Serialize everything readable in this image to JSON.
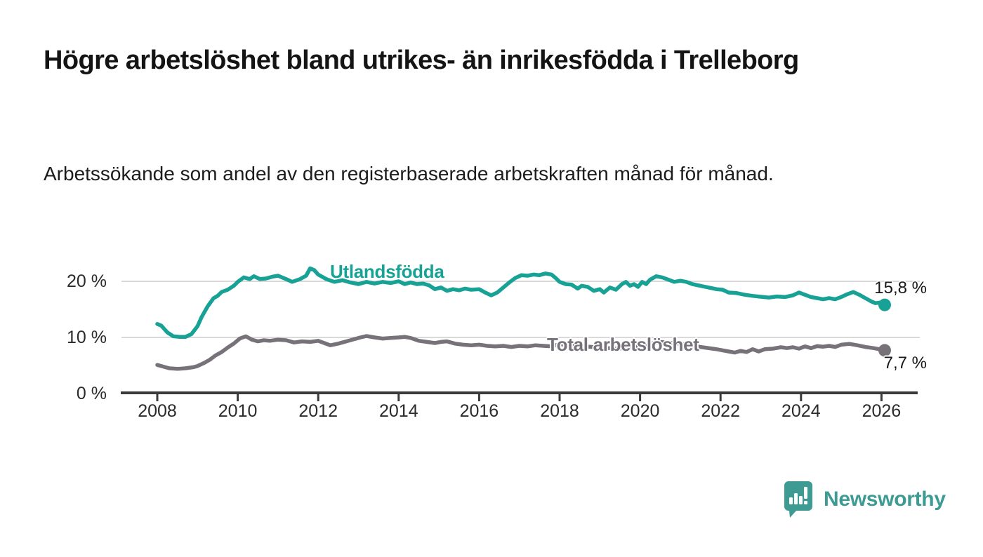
{
  "header": {
    "title": "Högre arbetslöshet bland utrikes- än inrikesfödda i Trelleborg",
    "subtitle": "Arbetssökande som andel av den registerbaserade arbetskraften månad för månad."
  },
  "footer": {
    "brand": "Newsworthy"
  },
  "colors": {
    "series_foreign": "#17a295",
    "series_total": "#77717a",
    "grid": "#d9d9d9",
    "axis": "#3a3a3a",
    "logo": "#3e9b94"
  },
  "chart_data": {
    "type": "line",
    "title": "Högre arbetslöshet bland utrikes- än inrikesfödda i Trelleborg",
    "subtitle": "Arbetssökande som andel av den registerbaserade arbetskraften månad för månad.",
    "unit": "%",
    "xlim": [
      2007.1,
      2026.9
    ],
    "ylim": [
      0,
      25
    ],
    "grid": "horizontal-only",
    "grid_values": [
      10,
      20
    ],
    "x_ticks": [
      2008,
      2010,
      2012,
      2014,
      2016,
      2018,
      2020,
      2022,
      2024,
      2026
    ],
    "y_ticks": [
      {
        "value": 0,
        "label": "0 %"
      },
      {
        "value": 10,
        "label": "10 %"
      },
      {
        "value": 20,
        "label": "20 %"
      }
    ],
    "legend_position": "inline-labels-on-lines",
    "series": [
      {
        "name": "Utlandsfödda",
        "color": "#17a295",
        "end_value": 15.8,
        "end_label": "15,8 %",
        "points": [
          [
            2008.0,
            12.4
          ],
          [
            2008.1,
            12.1
          ],
          [
            2008.25,
            10.9
          ],
          [
            2008.4,
            10.2
          ],
          [
            2008.55,
            10.1
          ],
          [
            2008.7,
            10.1
          ],
          [
            2008.85,
            10.6
          ],
          [
            2009.0,
            12.0
          ],
          [
            2009.1,
            13.6
          ],
          [
            2009.25,
            15.5
          ],
          [
            2009.4,
            17.0
          ],
          [
            2009.5,
            17.4
          ],
          [
            2009.6,
            18.1
          ],
          [
            2009.75,
            18.5
          ],
          [
            2009.9,
            19.2
          ],
          [
            2010.0,
            19.9
          ],
          [
            2010.15,
            20.7
          ],
          [
            2010.3,
            20.4
          ],
          [
            2010.4,
            20.9
          ],
          [
            2010.55,
            20.4
          ],
          [
            2010.7,
            20.5
          ],
          [
            2010.85,
            20.8
          ],
          [
            2011.0,
            21.0
          ],
          [
            2011.2,
            20.4
          ],
          [
            2011.35,
            19.9
          ],
          [
            2011.55,
            20.4
          ],
          [
            2011.7,
            21.0
          ],
          [
            2011.8,
            22.3
          ],
          [
            2011.9,
            22.0
          ],
          [
            2012.0,
            21.2
          ],
          [
            2012.2,
            20.4
          ],
          [
            2012.4,
            19.9
          ],
          [
            2012.6,
            20.2
          ],
          [
            2012.8,
            19.8
          ],
          [
            2013.0,
            19.5
          ],
          [
            2013.2,
            19.9
          ],
          [
            2013.4,
            19.6
          ],
          [
            2013.6,
            19.9
          ],
          [
            2013.8,
            19.7
          ],
          [
            2014.0,
            20.0
          ],
          [
            2014.15,
            19.5
          ],
          [
            2014.3,
            19.8
          ],
          [
            2014.45,
            19.5
          ],
          [
            2014.6,
            19.6
          ],
          [
            2014.75,
            19.3
          ],
          [
            2014.9,
            18.6
          ],
          [
            2015.05,
            18.9
          ],
          [
            2015.2,
            18.3
          ],
          [
            2015.35,
            18.6
          ],
          [
            2015.5,
            18.4
          ],
          [
            2015.65,
            18.7
          ],
          [
            2015.8,
            18.5
          ],
          [
            2016.0,
            18.6
          ],
          [
            2016.15,
            18.0
          ],
          [
            2016.3,
            17.5
          ],
          [
            2016.45,
            18.0
          ],
          [
            2016.6,
            18.9
          ],
          [
            2016.75,
            19.8
          ],
          [
            2016.9,
            20.6
          ],
          [
            2017.05,
            21.1
          ],
          [
            2017.2,
            21.0
          ],
          [
            2017.35,
            21.2
          ],
          [
            2017.5,
            21.1
          ],
          [
            2017.65,
            21.4
          ],
          [
            2017.8,
            21.2
          ],
          [
            2017.9,
            20.6
          ],
          [
            2018.0,
            19.9
          ],
          [
            2018.15,
            19.5
          ],
          [
            2018.3,
            19.4
          ],
          [
            2018.45,
            18.7
          ],
          [
            2018.55,
            19.2
          ],
          [
            2018.7,
            19.0
          ],
          [
            2018.85,
            18.3
          ],
          [
            2019.0,
            18.6
          ],
          [
            2019.1,
            18.0
          ],
          [
            2019.25,
            18.9
          ],
          [
            2019.4,
            18.5
          ],
          [
            2019.55,
            19.5
          ],
          [
            2019.65,
            19.9
          ],
          [
            2019.75,
            19.2
          ],
          [
            2019.85,
            19.5
          ],
          [
            2019.95,
            19.0
          ],
          [
            2020.05,
            19.9
          ],
          [
            2020.15,
            19.5
          ],
          [
            2020.25,
            20.3
          ],
          [
            2020.4,
            20.9
          ],
          [
            2020.55,
            20.7
          ],
          [
            2020.7,
            20.3
          ],
          [
            2020.85,
            19.9
          ],
          [
            2021.0,
            20.1
          ],
          [
            2021.15,
            19.9
          ],
          [
            2021.3,
            19.5
          ],
          [
            2021.5,
            19.2
          ],
          [
            2021.7,
            18.9
          ],
          [
            2021.9,
            18.6
          ],
          [
            2022.05,
            18.5
          ],
          [
            2022.2,
            18.0
          ],
          [
            2022.4,
            17.9
          ],
          [
            2022.6,
            17.6
          ],
          [
            2022.8,
            17.4
          ],
          [
            2023.0,
            17.25
          ],
          [
            2023.2,
            17.1
          ],
          [
            2023.4,
            17.3
          ],
          [
            2023.6,
            17.2
          ],
          [
            2023.8,
            17.5
          ],
          [
            2023.95,
            18.0
          ],
          [
            2024.1,
            17.6
          ],
          [
            2024.25,
            17.2
          ],
          [
            2024.4,
            17.0
          ],
          [
            2024.55,
            16.8
          ],
          [
            2024.7,
            17.0
          ],
          [
            2024.85,
            16.8
          ],
          [
            2025.0,
            17.2
          ],
          [
            2025.15,
            17.7
          ],
          [
            2025.3,
            18.1
          ],
          [
            2025.45,
            17.6
          ],
          [
            2025.6,
            17.0
          ],
          [
            2025.75,
            16.4
          ],
          [
            2025.85,
            16.1
          ],
          [
            2025.95,
            16.2
          ],
          [
            2026.08,
            15.8
          ]
        ]
      },
      {
        "name": "Total arbetslöshet",
        "color": "#77717a",
        "end_value": 7.7,
        "end_label": "7,7 %",
        "points": [
          [
            2008.0,
            5.1
          ],
          [
            2008.15,
            4.8
          ],
          [
            2008.3,
            4.5
          ],
          [
            2008.5,
            4.4
          ],
          [
            2008.7,
            4.5
          ],
          [
            2008.9,
            4.7
          ],
          [
            2009.0,
            4.9
          ],
          [
            2009.15,
            5.4
          ],
          [
            2009.3,
            6.0
          ],
          [
            2009.45,
            6.8
          ],
          [
            2009.6,
            7.4
          ],
          [
            2009.75,
            8.2
          ],
          [
            2009.9,
            8.9
          ],
          [
            2010.05,
            9.8
          ],
          [
            2010.2,
            10.2
          ],
          [
            2010.35,
            9.6
          ],
          [
            2010.5,
            9.3
          ],
          [
            2010.65,
            9.5
          ],
          [
            2010.8,
            9.4
          ],
          [
            2011.0,
            9.6
          ],
          [
            2011.2,
            9.5
          ],
          [
            2011.4,
            9.1
          ],
          [
            2011.6,
            9.3
          ],
          [
            2011.8,
            9.2
          ],
          [
            2012.0,
            9.4
          ],
          [
            2012.15,
            9.0
          ],
          [
            2012.3,
            8.6
          ],
          [
            2012.5,
            8.9
          ],
          [
            2012.7,
            9.3
          ],
          [
            2012.9,
            9.7
          ],
          [
            2013.05,
            10.0
          ],
          [
            2013.2,
            10.25
          ],
          [
            2013.4,
            10.0
          ],
          [
            2013.6,
            9.8
          ],
          [
            2013.8,
            9.9
          ],
          [
            2014.0,
            10.0
          ],
          [
            2014.15,
            10.1
          ],
          [
            2014.3,
            9.9
          ],
          [
            2014.5,
            9.4
          ],
          [
            2014.7,
            9.2
          ],
          [
            2014.9,
            9.0
          ],
          [
            2015.05,
            9.2
          ],
          [
            2015.2,
            9.3
          ],
          [
            2015.4,
            8.9
          ],
          [
            2015.6,
            8.7
          ],
          [
            2015.8,
            8.6
          ],
          [
            2016.0,
            8.7
          ],
          [
            2016.2,
            8.5
          ],
          [
            2016.4,
            8.4
          ],
          [
            2016.6,
            8.5
          ],
          [
            2016.8,
            8.3
          ],
          [
            2017.0,
            8.5
          ],
          [
            2017.2,
            8.4
          ],
          [
            2017.4,
            8.6
          ],
          [
            2017.6,
            8.5
          ],
          [
            2017.8,
            8.4
          ],
          [
            2018.0,
            8.8
          ],
          [
            2018.3,
            8.6
          ],
          [
            2018.6,
            8.4
          ],
          [
            2019.0,
            8.2
          ],
          [
            2019.4,
            8.0
          ],
          [
            2019.8,
            8.2
          ],
          [
            2020.2,
            8.8
          ],
          [
            2020.5,
            9.2
          ],
          [
            2020.8,
            9.0
          ],
          [
            2021.1,
            8.8
          ],
          [
            2021.5,
            8.3
          ],
          [
            2021.9,
            7.9
          ],
          [
            2022.2,
            7.5
          ],
          [
            2022.35,
            7.3
          ],
          [
            2022.5,
            7.6
          ],
          [
            2022.65,
            7.4
          ],
          [
            2022.8,
            7.9
          ],
          [
            2022.95,
            7.5
          ],
          [
            2023.1,
            7.9
          ],
          [
            2023.3,
            8.0
          ],
          [
            2023.5,
            8.25
          ],
          [
            2023.65,
            8.1
          ],
          [
            2023.8,
            8.25
          ],
          [
            2023.95,
            8.0
          ],
          [
            2024.1,
            8.4
          ],
          [
            2024.25,
            8.1
          ],
          [
            2024.4,
            8.45
          ],
          [
            2024.55,
            8.35
          ],
          [
            2024.7,
            8.5
          ],
          [
            2024.85,
            8.3
          ],
          [
            2025.0,
            8.7
          ],
          [
            2025.2,
            8.85
          ],
          [
            2025.4,
            8.6
          ],
          [
            2025.6,
            8.3
          ],
          [
            2025.8,
            8.1
          ],
          [
            2025.95,
            7.9
          ],
          [
            2026.08,
            7.7
          ]
        ]
      }
    ]
  }
}
